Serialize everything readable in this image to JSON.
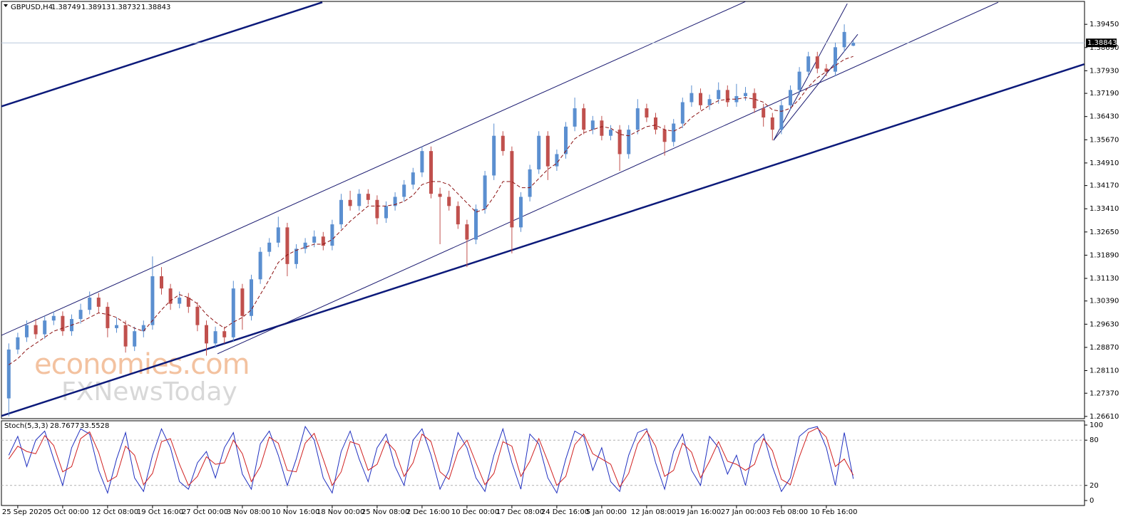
{
  "chart_data": [
    {
      "type": "candlestick",
      "title": "GBPUSD,H4",
      "categories": [
        null,
        "25 Sep 2020",
        null,
        null,
        null,
        null,
        "5 Oct 00:00",
        null,
        null,
        null,
        null,
        "12 Oct 08:00",
        null,
        null,
        null,
        null,
        "19 Oct 16:00",
        null,
        null,
        null,
        null,
        "27 Oct 00:00",
        null,
        null,
        null,
        null,
        "3 Nov 08:00",
        null,
        null,
        null,
        null,
        "10 Nov 16:00",
        null,
        null,
        null,
        null,
        "18 Nov 00:00",
        null,
        null,
        null,
        null,
        "25 Nov 08:00",
        null,
        null,
        null,
        null,
        "2 Dec 16:00",
        null,
        null,
        null,
        null,
        "10 Dec 00:00",
        null,
        null,
        null,
        null,
        "17 Dec 08:00",
        null,
        null,
        null,
        null,
        "24 Dec 16:00",
        null,
        null,
        null,
        null,
        "5 Jan 00:00",
        null,
        null,
        null,
        null,
        "12 Jan 08:00",
        null,
        null,
        null,
        null,
        "19 Jan 16:00",
        null,
        null,
        null,
        null,
        "27 Jan 00:00",
        null,
        null,
        null,
        null,
        "3 Feb 08:00",
        null,
        null,
        null,
        null,
        "10 Feb 16:00",
        null,
        null,
        null
      ],
      "open": [
        1.272,
        1.288,
        1.292,
        1.296,
        1.293,
        1.2975,
        1.299,
        1.294,
        1.298,
        1.301,
        1.305,
        1.302,
        1.295,
        1.296,
        1.289,
        1.294,
        1.296,
        1.312,
        1.308,
        1.303,
        1.305,
        1.302,
        1.296,
        1.29,
        1.294,
        1.292,
        1.308,
        1.299,
        1.311,
        1.32,
        1.323,
        1.328,
        1.316,
        1.321,
        1.323,
        1.325,
        1.322,
        1.329,
        1.337,
        1.335,
        1.339,
        1.337,
        1.331,
        1.335,
        1.338,
        1.342,
        1.346,
        1.353,
        1.339,
        1.338,
        1.335,
        1.329,
        1.324,
        1.334,
        1.345,
        1.358,
        1.353,
        1.328,
        1.338,
        1.347,
        1.358,
        1.348,
        1.352,
        1.361,
        1.367,
        1.36,
        1.363,
        1.358,
        1.36,
        1.352,
        1.36,
        1.367,
        1.364,
        1.36,
        1.356,
        1.362,
        1.369,
        1.372,
        1.368,
        1.37,
        1.373,
        1.369,
        1.371,
        1.372,
        1.367,
        1.364,
        1.36,
        1.368,
        1.373,
        1.379,
        1.384,
        1.38,
        1.379,
        1.387,
        1.38749
      ],
      "high": [
        1.29,
        1.2935,
        1.2975,
        1.298,
        1.299,
        1.3005,
        1.3005,
        1.2995,
        1.303,
        1.307,
        1.3065,
        1.3035,
        1.2985,
        1.2975,
        1.2955,
        1.2975,
        1.3185,
        1.315,
        1.3095,
        1.307,
        1.3065,
        1.3035,
        1.2975,
        1.2955,
        1.2955,
        1.3105,
        1.3095,
        1.3125,
        1.3215,
        1.3245,
        1.3315,
        1.3295,
        1.3225,
        1.3245,
        1.327,
        1.3265,
        1.3305,
        1.339,
        1.34,
        1.3405,
        1.3405,
        1.3385,
        1.3365,
        1.3395,
        1.3435,
        1.3475,
        1.3545,
        1.3545,
        1.341,
        1.34,
        1.3365,
        1.3305,
        1.3355,
        1.3465,
        1.362,
        1.3595,
        1.3545,
        1.3395,
        1.3485,
        1.3595,
        1.3595,
        1.3535,
        1.3625,
        1.3705,
        1.3685,
        1.3645,
        1.3645,
        1.3615,
        1.3615,
        1.3615,
        1.37,
        1.3685,
        1.3655,
        1.3615,
        1.3635,
        1.3705,
        1.3745,
        1.3735,
        1.3715,
        1.3755,
        1.3745,
        1.375,
        1.374,
        1.3735,
        1.3685,
        1.3655,
        1.3695,
        1.3745,
        1.3805,
        1.3855,
        1.3855,
        1.3815,
        1.3885,
        1.3945,
        1.38913
      ],
      "low": [
        1.2661,
        1.2865,
        1.2905,
        1.2915,
        1.2915,
        1.296,
        1.2925,
        1.2925,
        1.2965,
        1.2995,
        1.3,
        1.292,
        1.2935,
        1.287,
        1.2875,
        1.292,
        1.2945,
        1.306,
        1.301,
        1.3015,
        1.3,
        1.294,
        1.286,
        1.2885,
        1.29,
        1.2905,
        1.2945,
        1.2975,
        1.3095,
        1.3185,
        1.3215,
        1.312,
        1.3145,
        1.3195,
        1.3215,
        1.3205,
        1.3205,
        1.3275,
        1.3335,
        1.3335,
        1.3355,
        1.329,
        1.3295,
        1.3335,
        1.3365,
        1.3405,
        1.3445,
        1.3375,
        1.3225,
        1.3335,
        1.3275,
        1.315,
        1.3225,
        1.3325,
        1.3435,
        1.3515,
        1.3195,
        1.3265,
        1.3365,
        1.3455,
        1.3435,
        1.3465,
        1.3505,
        1.3595,
        1.3585,
        1.3585,
        1.3565,
        1.3565,
        1.3465,
        1.3505,
        1.3585,
        1.3625,
        1.3585,
        1.3515,
        1.3545,
        1.3605,
        1.3675,
        1.3665,
        1.3665,
        1.3685,
        1.3675,
        1.3675,
        1.3695,
        1.3655,
        1.361,
        1.3565,
        1.3585,
        1.3665,
        1.3715,
        1.3775,
        1.3785,
        1.3775,
        1.3775,
        1.3855,
        1.38732
      ],
      "close": [
        1.288,
        1.292,
        1.296,
        1.293,
        1.2975,
        1.299,
        1.294,
        1.298,
        1.301,
        1.305,
        1.302,
        1.295,
        1.296,
        1.289,
        1.294,
        1.296,
        1.312,
        1.308,
        1.303,
        1.305,
        1.302,
        1.296,
        1.29,
        1.294,
        1.292,
        1.308,
        1.299,
        1.311,
        1.32,
        1.323,
        1.328,
        1.316,
        1.321,
        1.323,
        1.325,
        1.322,
        1.329,
        1.337,
        1.335,
        1.339,
        1.337,
        1.331,
        1.335,
        1.338,
        1.342,
        1.346,
        1.353,
        1.339,
        1.338,
        1.335,
        1.329,
        1.324,
        1.334,
        1.345,
        1.358,
        1.353,
        1.328,
        1.338,
        1.347,
        1.358,
        1.348,
        1.352,
        1.361,
        1.367,
        1.36,
        1.363,
        1.358,
        1.36,
        1.352,
        1.36,
        1.367,
        1.364,
        1.36,
        1.356,
        1.362,
        1.369,
        1.372,
        1.368,
        1.37,
        1.373,
        1.369,
        1.371,
        1.372,
        1.367,
        1.364,
        1.36,
        1.368,
        1.373,
        1.379,
        1.384,
        1.38,
        1.379,
        1.387,
        1.392,
        1.38843
      ],
      "up_color": "#5b8fd0",
      "down_color": "#c0504d",
      "ma": {
        "color": "#8b1010",
        "values": [
          1.283,
          1.285,
          1.288,
          1.29,
          1.292,
          1.294,
          1.295,
          1.296,
          1.297,
          1.2985,
          1.3,
          1.2995,
          1.2985,
          1.2965,
          1.295,
          1.294,
          1.2975,
          1.301,
          1.304,
          1.306,
          1.305,
          1.303,
          1.2995,
          1.297,
          1.295,
          1.297,
          1.2985,
          1.301,
          1.306,
          1.311,
          1.3165,
          1.319,
          1.3205,
          1.3215,
          1.3225,
          1.3225,
          1.324,
          1.327,
          1.33,
          1.3325,
          1.335,
          1.335,
          1.335,
          1.3355,
          1.3365,
          1.3385,
          1.342,
          1.343,
          1.343,
          1.342,
          1.339,
          1.336,
          1.333,
          1.334,
          1.338,
          1.343,
          1.343,
          1.341,
          1.341,
          1.344,
          1.347,
          1.349,
          1.353,
          1.357,
          1.359,
          1.36,
          1.361,
          1.3605,
          1.3585,
          1.358,
          1.3595,
          1.361,
          1.3615,
          1.36,
          1.3595,
          1.361,
          1.364,
          1.366,
          1.368,
          1.3695,
          1.37,
          1.37,
          1.3705,
          1.37,
          1.369,
          1.3665,
          1.366,
          1.367,
          1.37,
          1.374,
          1.377,
          1.379,
          1.381,
          1.383,
          1.384
        ]
      },
      "trendlines": [
        {
          "x": [
            -0.98,
            34.9
          ],
          "y": [
            1.36747,
            1.40172
          ],
          "width": 2.5,
          "color": "#0c1a7a"
        },
        {
          "x": [
            -0.98,
            119.7
          ],
          "y": [
            1.26609,
            1.38145
          ],
          "width": 2.5,
          "color": "#0c1a7a"
        },
        {
          "x": [
            -0.98,
            82.0
          ],
          "y": [
            1.29243,
            1.40196
          ],
          "width": 1,
          "color": "#1a1a70"
        },
        {
          "x": [
            23.23,
            110.13
          ],
          "y": [
            1.2866,
            1.40172
          ],
          "width": 1,
          "color": "#1a1a70"
        },
        {
          "x": [
            85.13,
            93.33
          ],
          "y": [
            1.35651,
            1.40126
          ],
          "width": 1,
          "color": "#1a1a70"
        },
        {
          "x": [
            85.13,
            94.5
          ],
          "y": [
            1.35651,
            1.39124
          ],
          "width": 1,
          "color": "#1a1a70"
        }
      ],
      "ylim": [
        1.2656,
        1.402
      ],
      "yticks": [
        {
          "value": 1.3945,
          "label": "1.39450"
        },
        {
          "value": 1.3869,
          "label": "1.38690"
        },
        {
          "value": 1.3793,
          "label": "1.37930"
        },
        {
          "value": 1.3719,
          "label": "1.37190"
        },
        {
          "value": 1.3643,
          "label": "1.36430"
        },
        {
          "value": 1.3567,
          "label": "1.35670"
        },
        {
          "value": 1.3491,
          "label": "1.34910"
        },
        {
          "value": 1.3417,
          "label": "1.34170"
        },
        {
          "value": 1.3341,
          "label": "1.33410"
        },
        {
          "value": 1.3265,
          "label": "1.32650"
        },
        {
          "value": 1.3189,
          "label": "1.31890"
        },
        {
          "value": 1.3113,
          "label": "1.31130"
        },
        {
          "value": 1.3039,
          "label": "1.30390"
        },
        {
          "value": 1.2963,
          "label": "1.29630"
        },
        {
          "value": 1.2887,
          "label": "1.28870"
        },
        {
          "value": 1.2811,
          "label": "1.28110"
        },
        {
          "value": 1.2737,
          "label": "1.27370"
        },
        {
          "value": 1.2661,
          "label": "1.26610"
        }
      ],
      "watermark": [
        "economies.com",
        "FXNewsToday"
      ]
    },
    {
      "type": "line",
      "title": "Stoch(5,3,3)",
      "series": [
        {
          "color": "#2030c0",
          "values": [
            60,
            85,
            45,
            80,
            92,
            55,
            20,
            70,
            95,
            88,
            40,
            10,
            55,
            90,
            30,
            12,
            60,
            95,
            70,
            25,
            15,
            50,
            65,
            30,
            70,
            90,
            35,
            15,
            75,
            92,
            60,
            20,
            55,
            98,
            80,
            30,
            10,
            65,
            92,
            55,
            25,
            70,
            88,
            45,
            20,
            80,
            95,
            60,
            15,
            40,
            90,
            70,
            30,
            12,
            60,
            95,
            50,
            15,
            88,
            75,
            30,
            10,
            55,
            92,
            85,
            40,
            70,
            25,
            12,
            60,
            90,
            95,
            50,
            15,
            65,
            88,
            40,
            20,
            85,
            70,
            35,
            60,
            20,
            75,
            88,
            45,
            12,
            30,
            85,
            95,
            98,
            70,
            20,
            90,
            28.7677
          ]
        },
        {
          "color": "#d02020",
          "values": [
            55,
            72,
            65,
            62,
            86,
            73,
            38,
            45,
            82,
            91,
            64,
            25,
            32,
            72,
            60,
            21,
            36,
            78,
            82,
            48,
            20,
            32,
            58,
            48,
            50,
            80,
            62,
            25,
            45,
            84,
            76,
            40,
            38,
            76,
            89,
            55,
            20,
            38,
            78,
            74,
            40,
            48,
            79,
            66,
            32,
            50,
            88,
            78,
            38,
            28,
            65,
            80,
            50,
            21,
            36,
            78,
            72,
            32,
            52,
            82,
            52,
            20,
            32,
            74,
            88,
            62,
            55,
            48,
            18,
            36,
            75,
            92,
            72,
            32,
            40,
            76,
            64,
            30,
            52,
            78,
            52,
            48,
            40,
            48,
            82,
            66,
            28,
            21,
            58,
            90,
            96,
            84,
            45,
            55,
            33.5528
          ]
        }
      ],
      "ylim": [
        0,
        100
      ],
      "yticks": [
        0,
        20,
        80,
        100
      ]
    }
  ]
}
